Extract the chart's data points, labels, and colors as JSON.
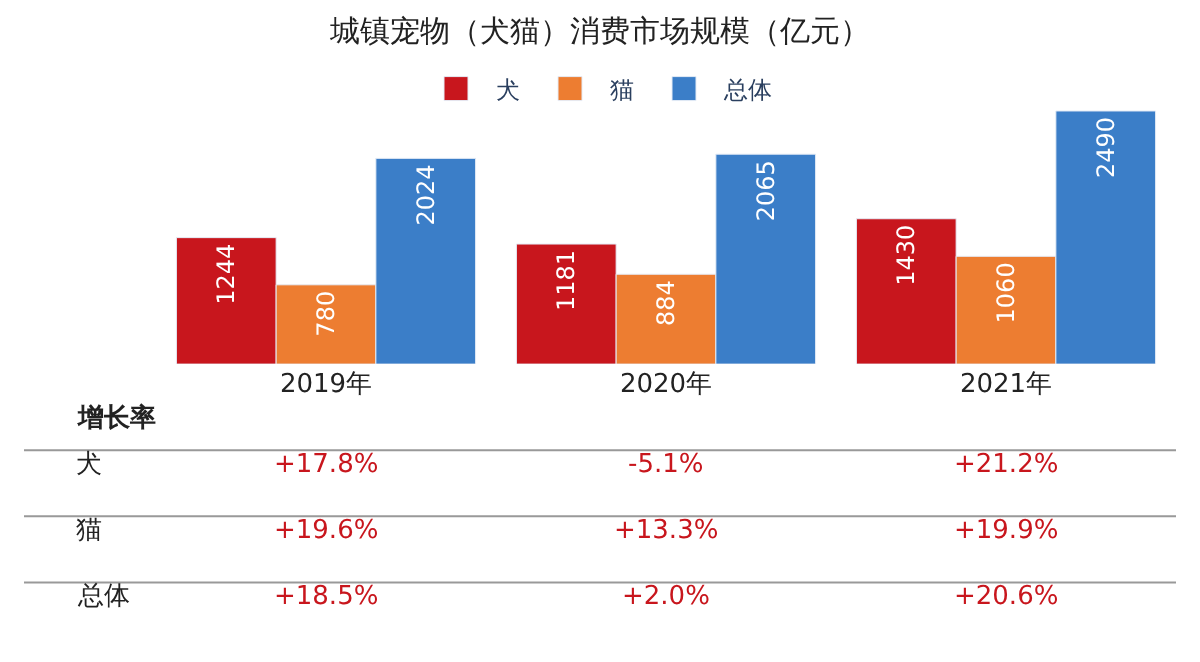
{
  "chart_data": {
    "type": "bar",
    "title": "城镇宠物（犬猫）消费市场规模（亿元）",
    "categories": [
      "2019年",
      "2020年",
      "2021年"
    ],
    "series": [
      {
        "name": "犬",
        "color": "#c8161d",
        "values": [
          1244,
          1181,
          1430
        ]
      },
      {
        "name": "猫",
        "color": "#ed7d31",
        "values": [
          780,
          884,
          1060
        ]
      },
      {
        "name": "总体",
        "color": "#3b7ec8",
        "values": [
          2024,
          2065,
          2490
        ]
      }
    ],
    "data_labels": true,
    "legend": "top",
    "annotations": [
      "增长率",
      "犬",
      "+17.8%",
      "-5.1%",
      "+21.2%",
      "猫",
      "+19.6%",
      "+13.3%",
      "+19.9%",
      "总体",
      "+18.5%",
      "+2.0%",
      "+20.6%"
    ]
  }
}
